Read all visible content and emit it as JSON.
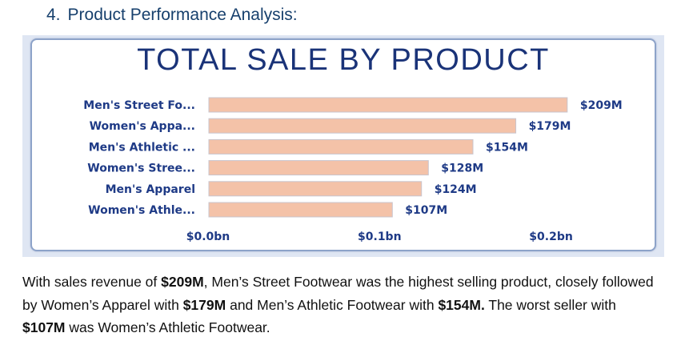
{
  "section": {
    "number": "4.",
    "title": "Product Performance Analysis:"
  },
  "chart_data": {
    "type": "bar",
    "orientation": "horizontal",
    "title": "TOTAL SALE BY PRODUCT",
    "categories": [
      "Men's Street Fo...",
      "Women's Appa...",
      "Men's Athletic ...",
      "Women's Stree...",
      "Men's Apparel",
      "Women's Athle..."
    ],
    "values": [
      209,
      179,
      154,
      128,
      124,
      107
    ],
    "value_labels": [
      "$209M",
      "$179M",
      "$154M",
      "$128M",
      "$124M",
      "$107M"
    ],
    "unit": "$M",
    "xlim": [
      0,
      280
    ],
    "xticks": [
      0,
      100,
      200
    ],
    "xtick_labels": [
      "$0.0bn",
      "$0.1bn",
      "$0.2bn"
    ],
    "bar_color": "#f4c2a8",
    "label_color": "#1e3a86",
    "grid": false,
    "legend": "none"
  },
  "summary": {
    "p1": "With sales revenue of ",
    "b1": "$209M",
    "p2": ", Men’s Street Footwear was the highest selling product, closely followed by Women’s Apparel with ",
    "b2": "$179M",
    "p3": " and Men’s Athletic Footwear with ",
    "b3": "$154M.",
    "p4": " The worst seller with ",
    "b4": "$107M",
    "p5": " was Women’s Athletic Footwear."
  }
}
